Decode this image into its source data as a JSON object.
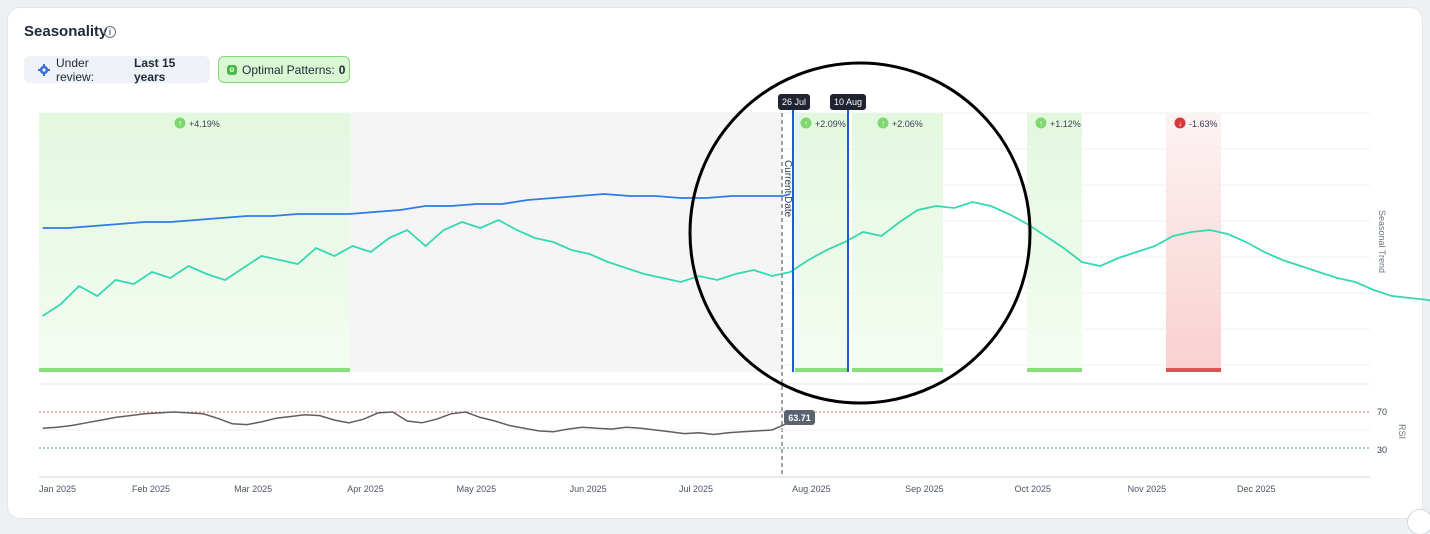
{
  "header": {
    "title": "Seasonality",
    "info_icon": "info-circle-icon"
  },
  "controls": {
    "review_label": "Under review:",
    "review_value": "Last 15 years",
    "review_icon": "gear-icon",
    "optimal_label": "Optimal Patterns:",
    "optimal_value": "0"
  },
  "chart_data": {
    "type": "line",
    "x_axis": {
      "tick_labels": [
        "Jan 2025",
        "Feb 2025",
        "Mar 2025",
        "Apr 2025",
        "May 2025",
        "Jun 2025",
        "Jul 2025",
        "Aug 2025",
        "Sep 2025",
        "Oct 2025",
        "Nov 2025",
        "Dec 2025"
      ]
    },
    "main_panel": {
      "right_axis_label": "Seasonal Trend",
      "series": [
        {
          "color": "#2f7be9",
          "role": "price",
          "points": [
            [
              1,
              0.56
            ],
            [
              8,
              0.56
            ],
            [
              15,
              0.57
            ],
            [
              22,
              0.58
            ],
            [
              29,
              0.59
            ],
            [
              36,
              0.59
            ],
            [
              43,
              0.6
            ],
            [
              50,
              0.61
            ],
            [
              57,
              0.62
            ],
            [
              64,
              0.62
            ],
            [
              71,
              0.63
            ],
            [
              78,
              0.63
            ],
            [
              85,
              0.63
            ],
            [
              92,
              0.64
            ],
            [
              99,
              0.65
            ],
            [
              106,
              0.67
            ],
            [
              113,
              0.67
            ],
            [
              120,
              0.68
            ],
            [
              127,
              0.68
            ],
            [
              134,
              0.7
            ],
            [
              141,
              0.71
            ],
            [
              148,
              0.72
            ],
            [
              155,
              0.73
            ],
            [
              162,
              0.72
            ],
            [
              169,
              0.72
            ],
            [
              176,
              0.71
            ],
            [
              183,
              0.71
            ],
            [
              190,
              0.72
            ],
            [
              197,
              0.72
            ],
            [
              204,
              0.72
            ],
            [
              206,
              0.73
            ]
          ]
        },
        {
          "color": "#35d8b2",
          "role": "seasonal",
          "points": [
            [
              1,
              0.12
            ],
            [
              6,
              0.18
            ],
            [
              11,
              0.27
            ],
            [
              16,
              0.22
            ],
            [
              21,
              0.3
            ],
            [
              26,
              0.28
            ],
            [
              31,
              0.34
            ],
            [
              36,
              0.31
            ],
            [
              41,
              0.37
            ],
            [
              46,
              0.33
            ],
            [
              51,
              0.3
            ],
            [
              56,
              0.36
            ],
            [
              61,
              0.42
            ],
            [
              66,
              0.4
            ],
            [
              71,
              0.38
            ],
            [
              76,
              0.46
            ],
            [
              81,
              0.42
            ],
            [
              86,
              0.47
            ],
            [
              91,
              0.44
            ],
            [
              96,
              0.51
            ],
            [
              101,
              0.55
            ],
            [
              106,
              0.47
            ],
            [
              111,
              0.55
            ],
            [
              116,
              0.59
            ],
            [
              121,
              0.56
            ],
            [
              126,
              0.6
            ],
            [
              131,
              0.55
            ],
            [
              136,
              0.51
            ],
            [
              141,
              0.49
            ],
            [
              146,
              0.45
            ],
            [
              151,
              0.43
            ],
            [
              156,
              0.39
            ],
            [
              161,
              0.36
            ],
            [
              166,
              0.33
            ],
            [
              171,
              0.31
            ],
            [
              176,
              0.29
            ],
            [
              181,
              0.32
            ],
            [
              186,
              0.3
            ],
            [
              191,
              0.33
            ],
            [
              196,
              0.35
            ],
            [
              201,
              0.32
            ],
            [
              206,
              0.34
            ],
            [
              211,
              0.4
            ],
            [
              216,
              0.45
            ],
            [
              221,
              0.49
            ],
            [
              226,
              0.54
            ],
            [
              231,
              0.52
            ],
            [
              236,
              0.59
            ],
            [
              241,
              0.65
            ],
            [
              246,
              0.67
            ],
            [
              251,
              0.66
            ],
            [
              256,
              0.69
            ],
            [
              261,
              0.67
            ],
            [
              266,
              0.63
            ],
            [
              271,
              0.58
            ],
            [
              276,
              0.52
            ],
            [
              281,
              0.46
            ],
            [
              286,
              0.39
            ],
            [
              291,
              0.37
            ],
            [
              296,
              0.41
            ],
            [
              301,
              0.44
            ],
            [
              306,
              0.47
            ],
            [
              311,
              0.52
            ],
            [
              316,
              0.54
            ],
            [
              321,
              0.55
            ],
            [
              326,
              0.53
            ],
            [
              331,
              0.49
            ],
            [
              336,
              0.44
            ],
            [
              341,
              0.4
            ],
            [
              346,
              0.37
            ],
            [
              351,
              0.34
            ],
            [
              356,
              0.31
            ],
            [
              361,
              0.29
            ],
            [
              366,
              0.25
            ],
            [
              371,
              0.22
            ],
            [
              376,
              0.21
            ],
            [
              381,
              0.2
            ],
            [
              386,
              0.16
            ],
            [
              391,
              0.14
            ],
            [
              396,
              0.17
            ],
            [
              401,
              0.2
            ],
            [
              406,
              0.25
            ]
          ]
        }
      ]
    },
    "rsi_panel": {
      "axis_label": "RSI",
      "ylim": [
        0,
        100
      ],
      "overbought": 70,
      "oversold": 30,
      "tick_labels": [
        "70",
        "30"
      ],
      "current_value_label": "63.71",
      "series": {
        "color": "#5f5f5f",
        "points": [
          [
            1,
            52
          ],
          [
            5,
            53
          ],
          [
            9,
            55
          ],
          [
            13,
            58
          ],
          [
            17,
            61
          ],
          [
            21,
            64
          ],
          [
            25,
            66
          ],
          [
            29,
            68
          ],
          [
            33,
            69
          ],
          [
            37,
            70
          ],
          [
            41,
            69
          ],
          [
            45,
            68
          ],
          [
            49,
            63
          ],
          [
            53,
            57
          ],
          [
            57,
            56
          ],
          [
            61,
            59
          ],
          [
            65,
            63
          ],
          [
            69,
            65
          ],
          [
            73,
            67
          ],
          [
            77,
            66
          ],
          [
            81,
            61
          ],
          [
            85,
            58
          ],
          [
            89,
            62
          ],
          [
            93,
            69
          ],
          [
            97,
            70
          ],
          [
            101,
            60
          ],
          [
            105,
            58
          ],
          [
            109,
            62
          ],
          [
            113,
            68
          ],
          [
            117,
            70
          ],
          [
            121,
            64
          ],
          [
            125,
            60
          ],
          [
            129,
            55
          ],
          [
            133,
            52
          ],
          [
            137,
            49
          ],
          [
            141,
            48
          ],
          [
            145,
            51
          ],
          [
            149,
            53
          ],
          [
            153,
            52
          ],
          [
            157,
            51
          ],
          [
            161,
            53
          ],
          [
            165,
            52
          ],
          [
            169,
            50
          ],
          [
            173,
            48
          ],
          [
            177,
            46
          ],
          [
            181,
            47
          ],
          [
            185,
            45
          ],
          [
            189,
            47
          ],
          [
            193,
            48
          ],
          [
            197,
            49
          ],
          [
            201,
            50
          ],
          [
            205,
            57
          ],
          [
            206,
            63.71
          ]
        ]
      }
    },
    "markers": {
      "current_date_label": "Current Date",
      "lines": [
        {
          "label": "26 Jul",
          "color": "#1e5fd0"
        },
        {
          "label": "10 Aug",
          "color": "#1e5fd0"
        }
      ]
    },
    "seasonal_windows": [
      {
        "label": "+4.19%",
        "direction": "up",
        "color": "#86e07a"
      },
      {
        "label": "+2.09%",
        "direction": "up",
        "color": "#86e07a"
      },
      {
        "label": "+2.06%",
        "direction": "up",
        "color": "#86e07a"
      },
      {
        "label": "+1.12%",
        "direction": "up",
        "color": "#86e07a"
      },
      {
        "label": "-1.63%",
        "direction": "down",
        "color": "#e05252"
      }
    ],
    "annotation": {
      "shape": "circle",
      "color": "#000000"
    }
  }
}
